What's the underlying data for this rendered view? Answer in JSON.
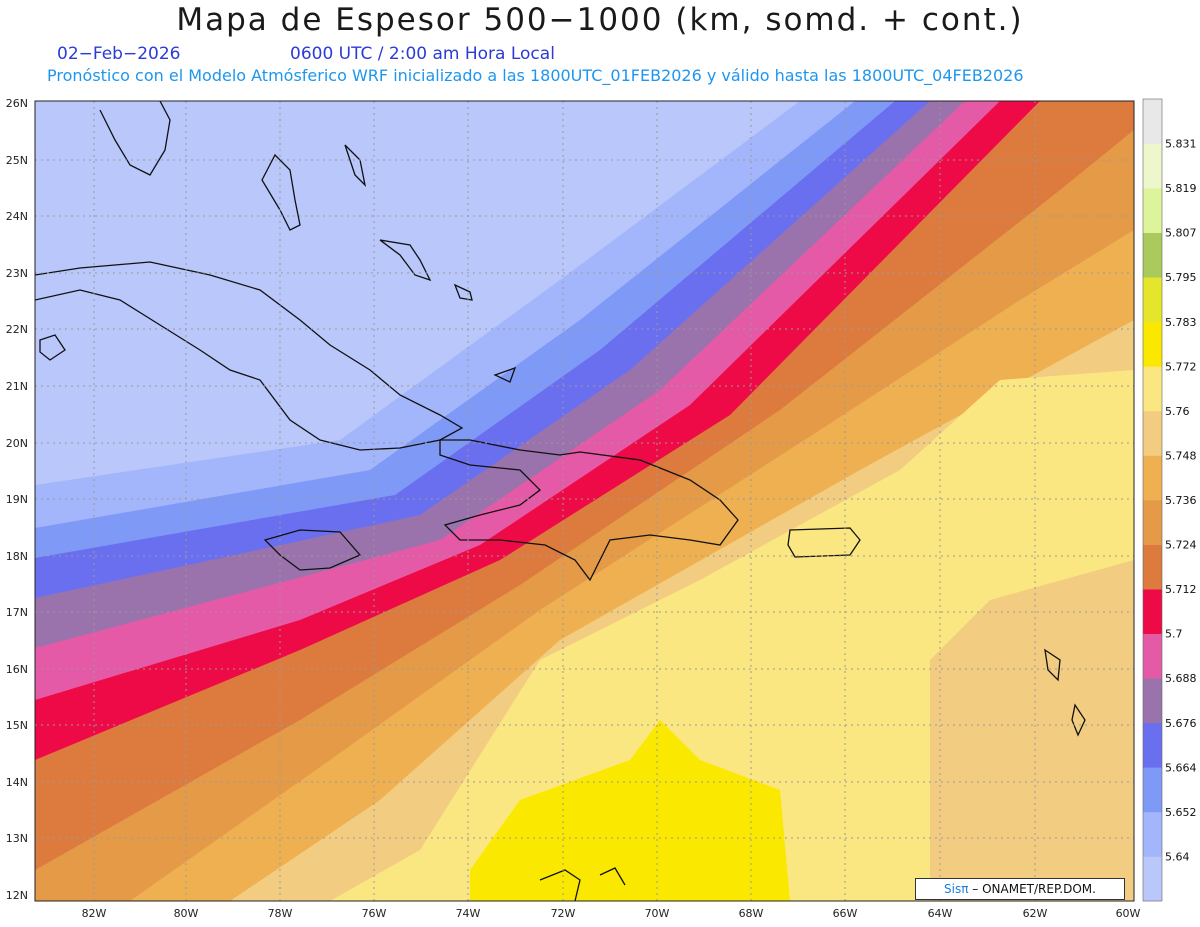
{
  "title": "Mapa de Espesor 500−1000 (km, somd. + cont.)",
  "date": "02−Feb−2026",
  "valid_time": "0600 UTC / 2:00 am Hora Local",
  "model_info": "Pronóstico con el Modelo Atmósferico WRF inicializado a las 1800UTC_01FEB2026 y válido hasta las  1800UTC_04FEB2026",
  "credit": {
    "logo": "Sisπ",
    "text": " – ONAMET/REP.DOM."
  },
  "lat_labels": [
    "26N",
    "25N",
    "24N",
    "23N",
    "22N",
    "21N",
    "20N",
    "19N",
    "18N",
    "17N",
    "16N",
    "15N",
    "14N",
    "13N",
    "12N"
  ],
  "lon_labels": [
    "82W",
    "80W",
    "78W",
    "76W",
    "74W",
    "72W",
    "70W",
    "68W",
    "66W",
    "64W",
    "62W",
    "60W"
  ],
  "colorbar": {
    "levels": [
      "5.64",
      "5.652",
      "5.664",
      "5.676",
      "5.688",
      "5.7",
      "5.712",
      "5.724",
      "5.736",
      "5.748",
      "5.76",
      "5.772",
      "5.783",
      "5.795",
      "5.807",
      "5.819",
      "5.831"
    ],
    "colors": [
      "#b9c7fb",
      "#a3b6fb",
      "#7f99f7",
      "#6a6ff0",
      "#9a73ad",
      "#e55aa6",
      "#ee0a46",
      "#dd7b3e",
      "#e59a48",
      "#efb052",
      "#f2cd81",
      "#fbe781",
      "#fbe800",
      "#e5e62b",
      "#aacb5b",
      "#def49a",
      "#eef6cc",
      "#e8e8e8"
    ]
  }
}
